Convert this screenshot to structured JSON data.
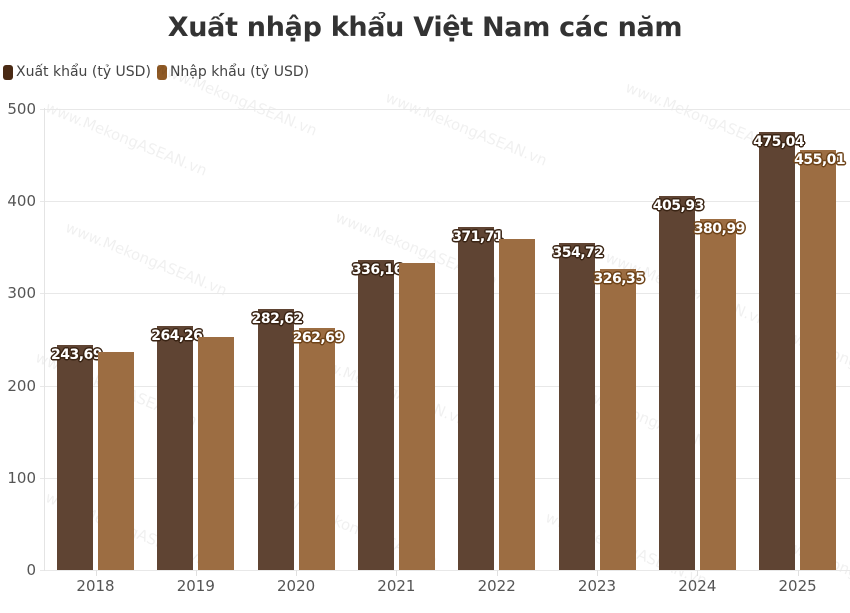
{
  "title": "Xuất nhập khẩu Việt Nam các năm",
  "legend": [
    {
      "label": "Xuất khẩu (tỷ USD)",
      "color": "#4a2a14"
    },
    {
      "label": "Nhập khẩu (tỷ USD)",
      "color": "#8f5a26"
    }
  ],
  "watermark": "www.MekongASEAN.vn",
  "colors": {
    "export_bar": "#5f4433",
    "import_bar": "#9c6d42",
    "grid": "#e8e8e8"
  },
  "chart_data": {
    "type": "bar",
    "title": "Xuất nhập khẩu Việt Nam các năm",
    "xlabel": "",
    "ylabel": "",
    "ylim": [
      0,
      500
    ],
    "yticks": [
      0,
      100,
      200,
      300,
      400,
      500
    ],
    "grid": true,
    "legend_position": "top-left",
    "categories": [
      "2018",
      "2019",
      "2020",
      "2021",
      "2022",
      "2023",
      "2024",
      "2025"
    ],
    "series": [
      {
        "name": "Xuất khẩu (tỷ USD)",
        "values": [
          243.69,
          264.26,
          282.62,
          336.16,
          371.71,
          354.72,
          405.93,
          475.04
        ],
        "labels": [
          "243,69",
          "264,26",
          "282,62",
          "336,16",
          "371,71",
          "354,72",
          "405,93",
          "475,04"
        ]
      },
      {
        "name": "Nhập khẩu (tỷ USD)",
        "values": [
          236.5,
          253.0,
          262.69,
          333.0,
          359.0,
          326.35,
          380.99,
          455.01
        ],
        "labels": [
          "",
          "",
          "262,69",
          "",
          "",
          "326,35",
          "380,99",
          "455,01"
        ]
      }
    ]
  }
}
